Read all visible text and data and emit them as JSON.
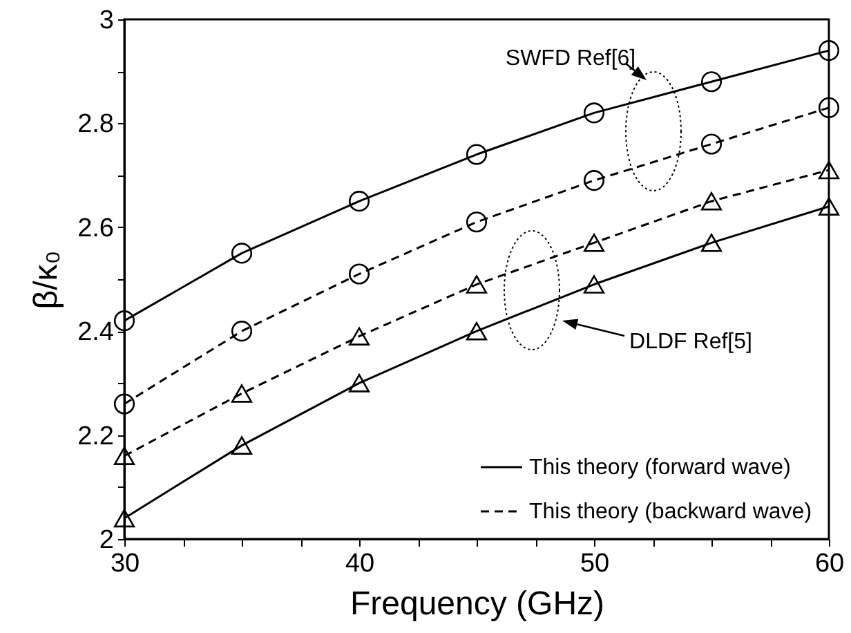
{
  "chart_data": {
    "type": "line",
    "xlabel": "Frequency (GHz)",
    "ylabel": "β/κ₀",
    "x": [
      30,
      35,
      40,
      45,
      50,
      55,
      60
    ],
    "series": [
      {
        "name": "This theory (forward wave)",
        "color": "#000000",
        "line_style": "solid",
        "marker": "circle",
        "values": [
          2.42,
          2.55,
          2.65,
          2.74,
          2.82,
          2.88,
          2.94
        ]
      },
      {
        "name": "This theory (backward wave)",
        "color": "#000000",
        "line_style": "dashed",
        "marker": "circle",
        "values": [
          2.26,
          2.4,
          2.51,
          2.61,
          2.69,
          2.76,
          2.83
        ]
      },
      {
        "color": "#000000",
        "line_style": "dashed",
        "marker": "triangle",
        "values": [
          2.16,
          2.28,
          2.39,
          2.49,
          2.57,
          2.65,
          2.71
        ]
      },
      {
        "color": "#000000",
        "line_style": "solid",
        "marker": "triangle",
        "values": [
          2.04,
          2.18,
          2.3,
          2.4,
          2.49,
          2.57,
          2.64
        ]
      }
    ],
    "xlim": [
      30,
      60
    ],
    "xticks": [
      30,
      {
        "value": 32.5,
        "label": null
      },
      {
        "value": 35,
        "label": null
      },
      {
        "value": 37.5,
        "label": null
      },
      40,
      {
        "value": 42.5,
        "label": null
      },
      {
        "value": 45,
        "label": null
      },
      {
        "value": 47.5,
        "label": null
      },
      50,
      {
        "value": 52.5,
        "label": null
      },
      {
        "value": 55,
        "label": null
      },
      {
        "value": 57.5,
        "label": null
      },
      60
    ],
    "ylim": [
      2,
      3
    ],
    "yticks": [
      2,
      {
        "value": 2.1,
        "label": null
      },
      2.2,
      {
        "value": 2.3,
        "label": null
      },
      2.4,
      {
        "value": 2.5,
        "label": null
      },
      2.6,
      {
        "value": 2.7,
        "label": null
      },
      2.8,
      {
        "value": 2.9,
        "label": null
      },
      3
    ],
    "annotations": [
      "SWFD Ref[6]",
      "DLDF Ref[5]"
    ],
    "legend": "bottom right",
    "grid": false
  }
}
